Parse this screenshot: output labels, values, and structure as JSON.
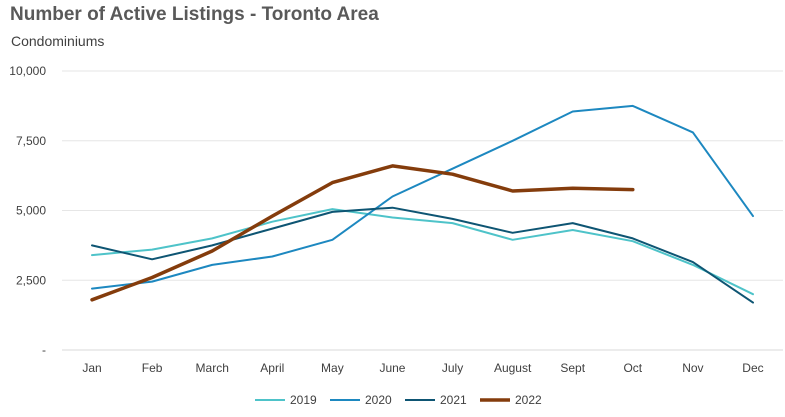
{
  "chart_data": {
    "type": "line",
    "title": "Number of Active Listings - Toronto Area",
    "subtitle": "Condominiums",
    "categories": [
      "Jan",
      "Feb",
      "March",
      "April",
      "May",
      "June",
      "July",
      "August",
      "Sept",
      "Oct",
      "Nov",
      "Dec"
    ],
    "ylim": [
      0,
      10000
    ],
    "yticks": [
      0,
      2500,
      5000,
      7500,
      10000
    ],
    "ytick_labels": [
      "-",
      "2,500",
      "5,000",
      "7,500",
      "10,000"
    ],
    "grid": "horizontal",
    "legend": "bottom",
    "series": [
      {
        "name": "2019",
        "color": "#4ec3c9",
        "values": [
          3400,
          3600,
          4000,
          4600,
          5050,
          4750,
          4550,
          3950,
          4300,
          3900,
          3050,
          2000
        ]
      },
      {
        "name": "2020",
        "color": "#1d88c0",
        "values": [
          2200,
          2450,
          3050,
          3350,
          3950,
          5500,
          6500,
          7500,
          8550,
          8750,
          7800,
          4800
        ]
      },
      {
        "name": "2021",
        "color": "#0e5573",
        "values": [
          3750,
          3250,
          3750,
          4350,
          4950,
          5100,
          4700,
          4200,
          4550,
          4000,
          3150,
          1700
        ]
      },
      {
        "name": "2022",
        "color": "#843c0c",
        "values": [
          1800,
          2600,
          3550,
          4800,
          6000,
          6600,
          6300,
          5700,
          5800,
          5750,
          null,
          null
        ]
      }
    ]
  }
}
